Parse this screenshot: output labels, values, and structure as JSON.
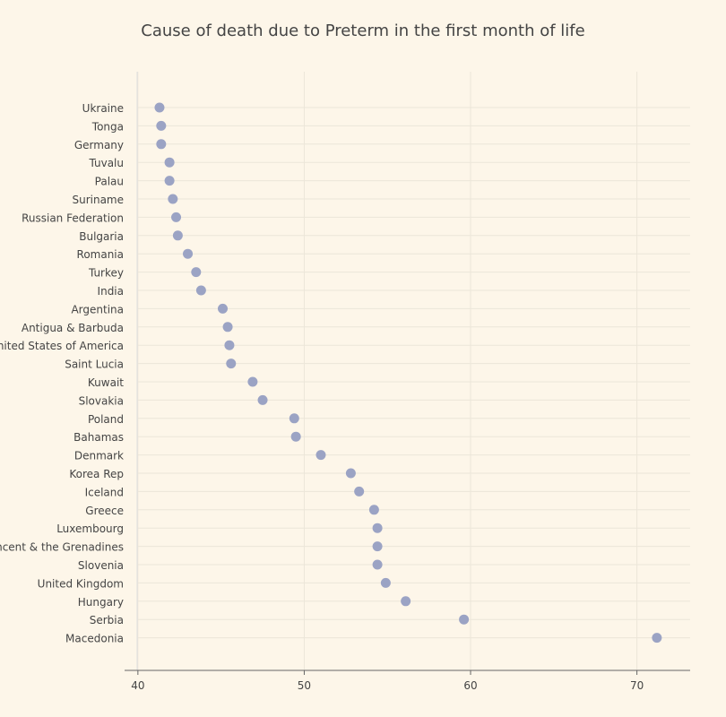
{
  "chart_data": {
    "type": "scatter",
    "title": "Cause of death due to Preterm in the first month of life",
    "xlabel": "",
    "ylabel": "",
    "xlim": [
      39.2,
      73.2
    ],
    "xticks": [
      40,
      50,
      60,
      70
    ],
    "grid": true,
    "legend": "none",
    "marker_color": "#9ba3c4",
    "categories": [
      "Ukraine",
      "Tonga",
      "Germany",
      "Tuvalu",
      "Palau",
      "Suriname",
      "Russian Federation",
      "Bulgaria",
      "Romania",
      "Turkey",
      "India",
      "Argentina",
      "Antigua & Barbuda",
      "United States of America",
      "Saint Lucia",
      "Kuwait",
      "Slovakia",
      "Poland",
      "Bahamas",
      "Denmark",
      "Korea Rep",
      "Iceland",
      "Greece",
      "Luxembourg",
      "Saint Vincent & the Grenadines",
      "Slovenia",
      "United Kingdom",
      "Hungary",
      "Serbia",
      "Macedonia"
    ],
    "values": [
      41.3,
      41.4,
      41.4,
      41.9,
      41.9,
      42.1,
      42.3,
      42.4,
      43.0,
      43.5,
      43.8,
      45.1,
      45.4,
      45.5,
      45.6,
      46.9,
      47.5,
      49.4,
      49.5,
      51.0,
      52.8,
      53.3,
      54.2,
      54.4,
      54.4,
      54.4,
      54.9,
      56.1,
      59.6,
      71.2
    ]
  }
}
